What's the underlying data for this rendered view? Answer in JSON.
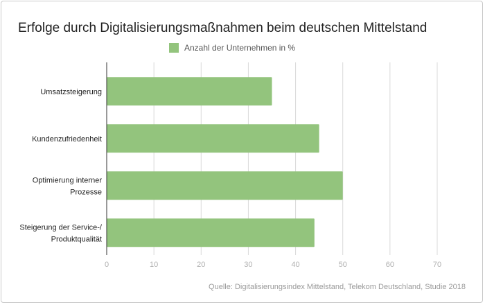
{
  "chart_data": {
    "type": "bar",
    "orientation": "horizontal",
    "title": "Erfolge durch Digitalisierungsmaßnahmen beim deutschen Mittelstand",
    "categories": [
      "Umsatzsteigerung",
      "Kundenzufriedenheit",
      "Optimierung interner Prozesse",
      "Steigerung der Service-/ Produktqualität"
    ],
    "category_lines": [
      [
        "Umsatzsteigerung"
      ],
      [
        "Kundenzufriedenheit"
      ],
      [
        "Optimierung interner",
        "Prozesse"
      ],
      [
        "Steigerung der Service-/",
        "Produktqualität"
      ]
    ],
    "series": [
      {
        "name": "Anzahl der Unternehmen in %",
        "values": [
          35,
          45,
          50,
          44
        ],
        "color": "#93c47d"
      }
    ],
    "xlim": [
      0,
      70
    ],
    "xticks": [
      0,
      10,
      20,
      30,
      40,
      50,
      60,
      70
    ],
    "grid": true,
    "legend": "top",
    "source": "Quelle: Digitalisierungsindex Mittelstand, Telekom Deutschland, Studie 2018"
  }
}
